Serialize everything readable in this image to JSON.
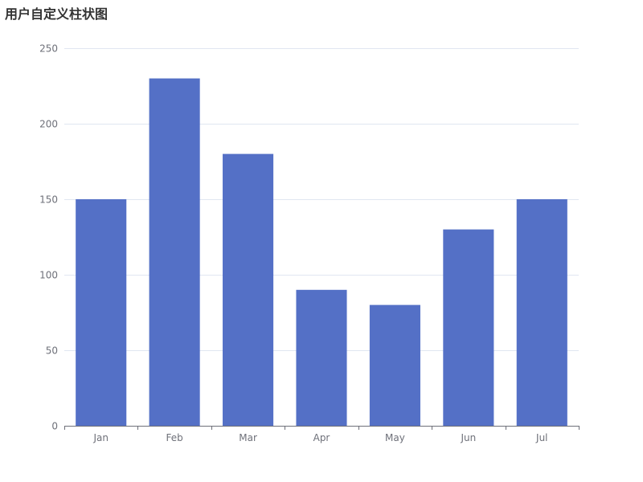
{
  "chart_data": {
    "type": "bar",
    "title": "用户自定义柱状图",
    "categories": [
      "Jan",
      "Feb",
      "Mar",
      "Apr",
      "May",
      "Jun",
      "Jul"
    ],
    "values": [
      150,
      230,
      180,
      90,
      80,
      130,
      150
    ],
    "ylim": [
      0,
      250
    ],
    "yticks": [
      0,
      50,
      100,
      150,
      200,
      250
    ],
    "xlabel": "",
    "ylabel": "",
    "grid": true,
    "bar_color": "#5470c6",
    "grid_color": "#e0e6f1",
    "axis_color": "#6e7079"
  }
}
